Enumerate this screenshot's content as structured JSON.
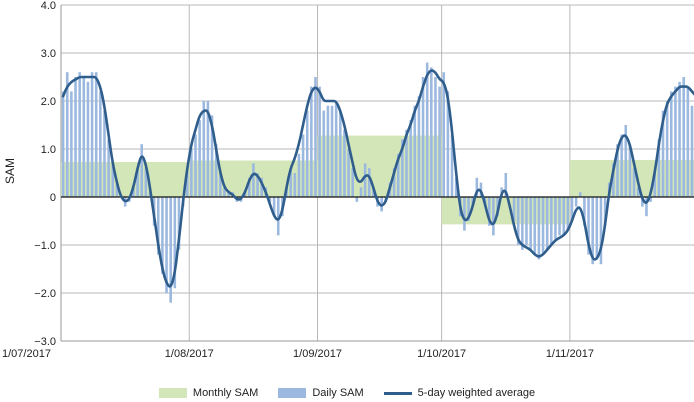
{
  "chart_data": {
    "type": "bar",
    "title": "",
    "xlabel": "",
    "ylabel": "SAM",
    "ylim": [
      -3.0,
      4.0
    ],
    "xlim": [
      "2017-07-01",
      "2017-11-30"
    ],
    "yticks": [
      "4.0",
      "3.0",
      "2.0",
      "1.0",
      "0",
      "−1.0",
      "−2.0",
      "−3.0"
    ],
    "xticks": [
      "1/07/2017",
      "1/08/2017",
      "1/09/2017",
      "1/10/2017",
      "1/11/2017"
    ],
    "grid": true,
    "legend_position": "bottom",
    "colors": {
      "monthly": "#d3e6b8",
      "daily": "#9bb8df",
      "weighted": "#2f5d8c"
    },
    "series": [
      {
        "name": "Monthly SAM",
        "type": "step",
        "months": [
          "2017-07",
          "2017-08",
          "2017-09",
          "2017-10",
          "2017-11"
        ],
        "values": [
          0.73,
          0.76,
          1.28,
          -0.57,
          0.77
        ]
      },
      {
        "name": "Daily SAM",
        "type": "bar",
        "start_date": "2017-07-01",
        "values": [
          2.2,
          2.6,
          2.2,
          2.5,
          2.6,
          2.5,
          2.4,
          2.6,
          2.6,
          2.2,
          1.8,
          1.2,
          0.7,
          0.3,
          0.0,
          -0.2,
          -0.1,
          0.2,
          0.6,
          1.1,
          0.6,
          0.1,
          -0.6,
          -1.2,
          -1.6,
          -2.0,
          -2.2,
          -1.9,
          -1.1,
          -0.2,
          0.6,
          1.0,
          1.3,
          1.6,
          2.0,
          2.0,
          1.7,
          1.1,
          0.5,
          0.2,
          0.1,
          0.1,
          -0.1,
          -0.1,
          0.1,
          0.4,
          0.7,
          0.5,
          0.4,
          0.2,
          -0.1,
          -0.4,
          -0.8,
          -0.4,
          0.2,
          0.6,
          0.5,
          0.9,
          1.3,
          1.8,
          2.3,
          2.5,
          2.3,
          1.8,
          1.9,
          1.9,
          2.0,
          1.8,
          1.4,
          1.0,
          0.6,
          -0.1,
          0.2,
          0.7,
          0.6,
          0.2,
          -0.2,
          -0.3,
          -0.1,
          0.3,
          0.6,
          0.9,
          1.2,
          1.4,
          1.6,
          1.9,
          2.1,
          2.5,
          2.8,
          2.7,
          2.5,
          2.3,
          2.6,
          2.2,
          1.3,
          0.4,
          -0.4,
          -0.7,
          -0.5,
          -0.2,
          0.4,
          0.3,
          -0.2,
          -0.6,
          -0.8,
          -0.4,
          0.2,
          0.5,
          0.0,
          -0.5,
          -1.0,
          -1.1,
          -1.0,
          -1.1,
          -1.2,
          -1.3,
          -1.2,
          -1.1,
          -1.0,
          -0.9,
          -0.8,
          -0.8,
          -0.7,
          -0.5,
          -0.2,
          0.1,
          -0.6,
          -1.2,
          -1.4,
          -1.3,
          -1.4,
          -0.6,
          0.3,
          0.7,
          1.1,
          1.3,
          1.5,
          1.1,
          0.6,
          0.2,
          -0.2,
          -0.4,
          -0.1,
          0.5,
          1.2,
          1.8,
          2.0,
          2.2,
          2.3,
          2.4,
          2.5,
          2.3,
          1.9,
          1.9
        ]
      },
      {
        "name": "5-day weighted average",
        "type": "line",
        "start_date": "2017-07-01",
        "values": [
          2.1,
          2.3,
          2.4,
          2.45,
          2.5,
          2.5,
          2.5,
          2.5,
          2.5,
          2.3,
          1.9,
          1.3,
          0.7,
          0.3,
          0.0,
          -0.1,
          -0.05,
          0.2,
          0.6,
          0.9,
          0.7,
          0.2,
          -0.4,
          -1.0,
          -1.5,
          -1.8,
          -1.9,
          -1.6,
          -0.9,
          -0.1,
          0.6,
          1.1,
          1.4,
          1.7,
          1.8,
          1.8,
          1.5,
          1.0,
          0.5,
          0.2,
          0.1,
          0.05,
          -0.05,
          -0.05,
          0.1,
          0.35,
          0.5,
          0.45,
          0.3,
          0.1,
          -0.15,
          -0.4,
          -0.5,
          -0.3,
          0.2,
          0.6,
          0.8,
          1.1,
          1.5,
          1.9,
          2.2,
          2.3,
          2.2,
          2.0,
          2.0,
          2.0,
          2.0,
          1.8,
          1.5,
          1.1,
          0.7,
          0.35,
          0.3,
          0.45,
          0.45,
          0.2,
          -0.1,
          -0.2,
          -0.1,
          0.2,
          0.5,
          0.8,
          1.0,
          1.3,
          1.5,
          1.8,
          2.0,
          2.3,
          2.55,
          2.65,
          2.6,
          2.45,
          2.4,
          2.1,
          1.4,
          0.5,
          -0.25,
          -0.5,
          -0.45,
          -0.2,
          0.15,
          0.15,
          -0.15,
          -0.5,
          -0.6,
          -0.35,
          0.1,
          0.15,
          -0.2,
          -0.6,
          -0.9,
          -1.0,
          -1.05,
          -1.1,
          -1.2,
          -1.25,
          -1.2,
          -1.1,
          -1.0,
          -0.9,
          -0.85,
          -0.8,
          -0.7,
          -0.5,
          -0.25,
          -0.2,
          -0.5,
          -1.0,
          -1.3,
          -1.3,
          -1.1,
          -0.6,
          0.1,
          0.55,
          1.0,
          1.25,
          1.3,
          1.1,
          0.7,
          0.3,
          -0.05,
          -0.15,
          0.05,
          0.5,
          1.1,
          1.6,
          1.95,
          2.1,
          2.2,
          2.3,
          2.3,
          2.3,
          2.2,
          2.1
        ]
      }
    ]
  },
  "legend": {
    "monthly": "Monthly SAM",
    "daily": "Daily SAM",
    "weighted": "5-day weighted average"
  }
}
